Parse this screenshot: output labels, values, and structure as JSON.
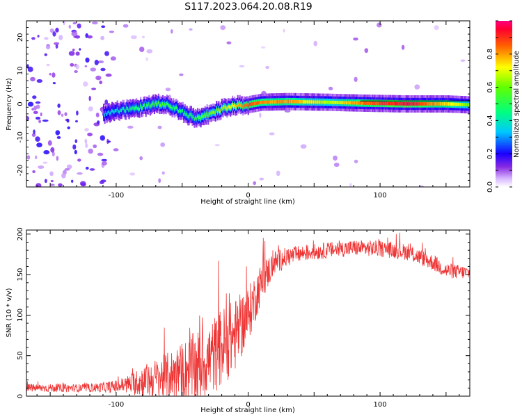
{
  "title": "S117.2023.064.20.08.R19",
  "chart_data": [
    {
      "type": "heatmap",
      "name": "spectrogram",
      "xlabel": "Height of straight line (km)",
      "ylabel": "Frequency (Hz)",
      "xlim": [
        -168,
        168
      ],
      "ylim": [
        -25,
        25
      ],
      "xticks": [
        -100,
        0,
        100
      ],
      "yticks": [
        -20,
        -10,
        0,
        10,
        20
      ],
      "ridge": {
        "x": [
          -110,
          -100,
          -90,
          -80,
          -70,
          -60,
          -50,
          -40,
          -35,
          -30,
          -20,
          -10,
          0,
          10,
          30,
          60,
          90,
          120,
          150,
          168
        ],
        "freq": [
          -3,
          -2,
          -1.5,
          -1,
          0,
          -0.5,
          -2.5,
          -4.5,
          -4,
          -3,
          -1.5,
          -0.5,
          -0.2,
          0.5,
          0.7,
          0.5,
          0.2,
          0,
          0,
          -0.3
        ],
        "amp": [
          0.3,
          0.38,
          0.45,
          0.5,
          0.55,
          0.5,
          0.45,
          0.5,
          0.55,
          0.6,
          0.65,
          0.75,
          0.88,
          0.8,
          0.8,
          0.65,
          0.85,
          0.95,
          0.75,
          0.6
        ]
      },
      "colorbar": {
        "label": "Normalized spectral amplitude",
        "range": [
          0,
          1
        ],
        "ticks": [
          0.0,
          0.2,
          0.4,
          0.6,
          0.8
        ]
      }
    },
    {
      "type": "line",
      "name": "snr",
      "xlabel": "Height of straight line (km)",
      "ylabel": "SNR (10 * v/v)",
      "xlim": [
        -168,
        168
      ],
      "ylim": [
        0,
        205
      ],
      "xticks": [
        -100,
        0,
        100
      ],
      "yticks": [
        0,
        50,
        100,
        150,
        200
      ],
      "color": "#ee3333",
      "envelope": {
        "x": [
          -168,
          -120,
          -100,
          -90,
          -80,
          -60,
          -40,
          -30,
          -20,
          -10,
          0,
          10,
          20,
          30,
          40,
          60,
          80,
          100,
          120,
          140,
          150,
          168
        ],
        "baseline": [
          10,
          10,
          12,
          15,
          18,
          25,
          35,
          45,
          60,
          75,
          100,
          140,
          165,
          172,
          176,
          180,
          183,
          182,
          178,
          165,
          155,
          152
        ],
        "spread": [
          5,
          5,
          8,
          12,
          20,
          30,
          45,
          45,
          50,
          45,
          35,
          25,
          15,
          12,
          10,
          10,
          10,
          10,
          10,
          10,
          10,
          8
        ]
      }
    }
  ]
}
